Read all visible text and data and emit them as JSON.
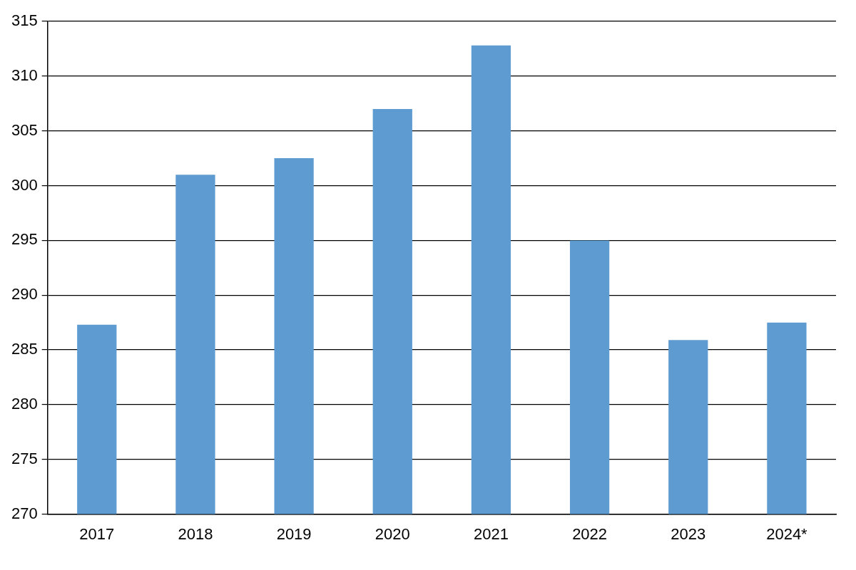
{
  "chart_data": {
    "type": "bar",
    "categories": [
      "2017",
      "2018",
      "2019",
      "2020",
      "2021",
      "2022",
      "2023",
      "2024*"
    ],
    "values": [
      287.3,
      301.0,
      302.5,
      307.0,
      312.8,
      295.0,
      285.9,
      287.5
    ],
    "color": "#5e9bd1",
    "ylim": [
      270,
      315
    ],
    "yticks": [
      270,
      275,
      280,
      285,
      290,
      295,
      300,
      305,
      310,
      315
    ],
    "grid": "y",
    "legend": false
  }
}
